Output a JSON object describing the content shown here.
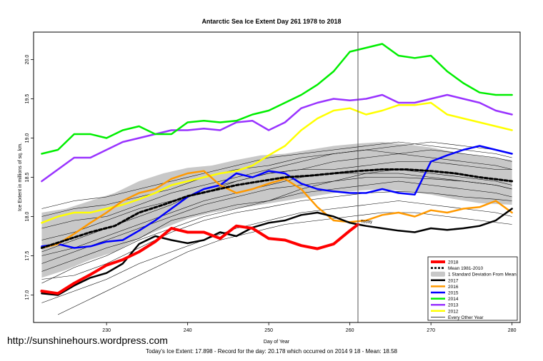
{
  "chart_data": {
    "type": "line",
    "title": "Antarctic Sea Ice Extent Day 261 1978 to 2018",
    "xlabel": "Day of Year",
    "ylabel": "Ice Extent in millions of sq. km.",
    "xlim": [
      221,
      281
    ],
    "ylim": [
      16.65,
      20.35
    ],
    "x_ticks": [
      230,
      240,
      250,
      260,
      270,
      280
    ],
    "y_ticks": [
      17.0,
      17.5,
      18.0,
      18.5,
      19.0,
      19.5,
      20.0
    ],
    "marker_day": 261,
    "marker_label": "Today",
    "legend_position": "bottom-right",
    "band": {
      "name": "1 Standard Deviation From Mean",
      "x": [
        222,
        225,
        228,
        231,
        234,
        237,
        240,
        243,
        246,
        249,
        252,
        255,
        258,
        261,
        264,
        267,
        270,
        273,
        276,
        280
      ],
      "upper": [
        18.05,
        18.1,
        18.2,
        18.3,
        18.45,
        18.55,
        18.62,
        18.65,
        18.72,
        18.78,
        18.8,
        18.85,
        18.9,
        18.93,
        18.95,
        18.92,
        18.88,
        18.82,
        18.77,
        18.72
      ],
      "lower": [
        17.22,
        17.32,
        17.45,
        17.55,
        17.72,
        17.85,
        17.97,
        18.05,
        18.1,
        18.15,
        18.2,
        18.25,
        18.3,
        18.33,
        18.35,
        18.32,
        18.28,
        18.22,
        18.17,
        18.15
      ]
    },
    "series": [
      {
        "name": "2018",
        "color": "#ff0000",
        "width": 4,
        "x": [
          222,
          224,
          226,
          228,
          230,
          232,
          234,
          236,
          238,
          240,
          242,
          244,
          246,
          248,
          250,
          252,
          254,
          256,
          258,
          260,
          261
        ],
        "values": [
          17.05,
          17.02,
          17.15,
          17.26,
          17.38,
          17.45,
          17.55,
          17.68,
          17.85,
          17.8,
          17.8,
          17.72,
          17.88,
          17.85,
          17.72,
          17.7,
          17.63,
          17.59,
          17.65,
          17.82,
          17.898
        ]
      },
      {
        "name": "Mean 1981-2010",
        "color": "#000000",
        "width": 3,
        "dash": "4,3",
        "x": [
          222,
          225,
          228,
          231,
          234,
          237,
          240,
          243,
          246,
          249,
          252,
          255,
          258,
          261,
          264,
          267,
          270,
          273,
          276,
          280
        ],
        "values": [
          17.6,
          17.7,
          17.8,
          17.88,
          18.05,
          18.15,
          18.26,
          18.33,
          18.4,
          18.45,
          18.5,
          18.52,
          18.55,
          18.58,
          18.6,
          18.6,
          18.58,
          18.55,
          18.5,
          18.45
        ]
      },
      {
        "name": "2017",
        "color": "#000000",
        "width": 2.5,
        "x": [
          222,
          224,
          226,
          228,
          230,
          232,
          234,
          236,
          238,
          240,
          242,
          244,
          246,
          248,
          250,
          252,
          254,
          256,
          258,
          260,
          262,
          264,
          266,
          268,
          270,
          272,
          274,
          276,
          278,
          280
        ],
        "values": [
          17.02,
          17.0,
          17.12,
          17.22,
          17.28,
          17.4,
          17.65,
          17.75,
          17.7,
          17.66,
          17.7,
          17.8,
          17.75,
          17.86,
          17.92,
          17.95,
          18.02,
          18.05,
          18.0,
          17.92,
          17.88,
          17.85,
          17.82,
          17.8,
          17.85,
          17.83,
          17.85,
          17.88,
          17.95,
          18.1
        ]
      },
      {
        "name": "2016",
        "color": "#ff9900",
        "width": 2.5,
        "x": [
          222,
          224,
          226,
          228,
          230,
          232,
          234,
          236,
          238,
          240,
          242,
          244,
          246,
          248,
          250,
          252,
          254,
          256,
          258,
          260,
          262,
          264,
          266,
          268,
          270,
          272,
          274,
          276,
          278,
          280
        ],
        "values": [
          17.6,
          17.65,
          17.78,
          17.92,
          18.05,
          18.2,
          18.3,
          18.35,
          18.48,
          18.55,
          18.58,
          18.4,
          18.3,
          18.35,
          18.42,
          18.48,
          18.35,
          18.12,
          17.95,
          17.93,
          17.95,
          18.02,
          18.05,
          18.0,
          18.08,
          18.05,
          18.1,
          18.12,
          18.2,
          18.05
        ]
      },
      {
        "name": "2015",
        "color": "#0000ff",
        "width": 2.5,
        "x": [
          222,
          224,
          226,
          228,
          230,
          232,
          234,
          236,
          238,
          240,
          242,
          244,
          246,
          248,
          250,
          252,
          254,
          256,
          258,
          260,
          262,
          264,
          266,
          268,
          270,
          272,
          274,
          276,
          278,
          280
        ],
        "values": [
          17.62,
          17.65,
          17.6,
          17.62,
          17.68,
          17.7,
          17.82,
          17.95,
          18.1,
          18.25,
          18.35,
          18.4,
          18.55,
          18.5,
          18.58,
          18.55,
          18.42,
          18.35,
          18.32,
          18.3,
          18.3,
          18.35,
          18.3,
          18.28,
          18.7,
          18.78,
          18.85,
          18.9,
          18.85,
          18.8
        ]
      },
      {
        "name": "2014",
        "color": "#00ee00",
        "width": 2.5,
        "x": [
          222,
          224,
          226,
          228,
          230,
          232,
          234,
          236,
          238,
          240,
          242,
          244,
          246,
          248,
          250,
          252,
          254,
          256,
          258,
          260,
          262,
          264,
          266,
          268,
          270,
          272,
          274,
          276,
          278,
          280
        ],
        "values": [
          18.8,
          18.85,
          19.05,
          19.05,
          19.0,
          19.1,
          19.15,
          19.05,
          19.05,
          19.2,
          19.22,
          19.2,
          19.22,
          19.3,
          19.35,
          19.45,
          19.55,
          19.68,
          19.85,
          20.1,
          20.15,
          20.2,
          20.05,
          20.02,
          20.05,
          19.85,
          19.7,
          19.58,
          19.55,
          19.55
        ]
      },
      {
        "name": "2013",
        "color": "#9933ff",
        "width": 2.5,
        "x": [
          222,
          224,
          226,
          228,
          230,
          232,
          234,
          236,
          238,
          240,
          242,
          244,
          246,
          248,
          250,
          252,
          254,
          256,
          258,
          260,
          262,
          264,
          266,
          268,
          270,
          272,
          274,
          276,
          278,
          280
        ],
        "values": [
          18.45,
          18.6,
          18.75,
          18.75,
          18.85,
          18.95,
          19.0,
          19.05,
          19.1,
          19.1,
          19.12,
          19.1,
          19.2,
          19.22,
          19.1,
          19.2,
          19.38,
          19.45,
          19.5,
          19.48,
          19.5,
          19.55,
          19.45,
          19.45,
          19.5,
          19.55,
          19.5,
          19.45,
          19.35,
          19.3
        ]
      },
      {
        "name": "2012",
        "color": "#ffff00",
        "width": 2.5,
        "x": [
          222,
          224,
          226,
          228,
          230,
          232,
          234,
          236,
          238,
          240,
          242,
          244,
          246,
          248,
          250,
          252,
          254,
          256,
          258,
          260,
          262,
          264,
          266,
          268,
          270,
          272,
          274,
          276,
          278,
          280
        ],
        "values": [
          17.92,
          18.0,
          18.05,
          18.05,
          18.1,
          18.15,
          18.22,
          18.3,
          18.4,
          18.45,
          18.5,
          18.55,
          18.58,
          18.65,
          18.78,
          18.9,
          19.1,
          19.25,
          19.35,
          19.38,
          19.3,
          19.35,
          19.42,
          19.42,
          19.45,
          19.3,
          19.25,
          19.2,
          19.15,
          19.1
        ]
      }
    ],
    "other_label": "Every Other Year",
    "other_color": "#000000",
    "other_years": [
      {
        "x": [
          222,
          226,
          230,
          234,
          238,
          242,
          246,
          250,
          254,
          258,
          262,
          266,
          270,
          274,
          278,
          280
        ],
        "values": [
          17.3,
          17.45,
          17.6,
          17.72,
          17.95,
          18.05,
          18.15,
          18.2,
          18.35,
          18.45,
          18.5,
          18.5,
          18.48,
          18.45,
          18.4,
          18.35
        ]
      },
      {
        "x": [
          222,
          226,
          230,
          234,
          238,
          242,
          246,
          250,
          254,
          258,
          262,
          266,
          270,
          274,
          278,
          280
        ],
        "values": [
          17.55,
          17.7,
          17.85,
          18.0,
          18.15,
          18.35,
          18.45,
          18.55,
          18.6,
          18.7,
          18.75,
          18.8,
          18.75,
          18.7,
          18.65,
          18.6
        ]
      },
      {
        "x": [
          222,
          226,
          230,
          234,
          238,
          242,
          246,
          250,
          254,
          258,
          262,
          266,
          270,
          274,
          278,
          280
        ],
        "values": [
          17.2,
          17.25,
          17.4,
          17.6,
          17.8,
          17.95,
          18.05,
          18.12,
          18.2,
          18.25,
          18.3,
          18.32,
          18.3,
          18.25,
          18.22,
          18.2
        ]
      },
      {
        "x": [
          222,
          226,
          230,
          234,
          238,
          242,
          246,
          250,
          254,
          258,
          262,
          266,
          270,
          274,
          278,
          280
        ],
        "values": [
          18.1,
          18.2,
          18.25,
          18.35,
          18.45,
          18.55,
          18.65,
          18.75,
          18.8,
          18.85,
          18.9,
          18.95,
          18.9,
          18.85,
          18.8,
          18.75
        ]
      },
      {
        "x": [
          222,
          226,
          230,
          234,
          238,
          242,
          246,
          250,
          254,
          258,
          262,
          266,
          270,
          274,
          278,
          280
        ],
        "values": [
          16.9,
          17.05,
          17.2,
          17.4,
          17.55,
          17.7,
          17.85,
          17.95,
          18.05,
          18.1,
          18.15,
          18.2,
          18.15,
          18.1,
          18.05,
          18.0
        ]
      },
      {
        "x": [
          222,
          226,
          230,
          234,
          238,
          242,
          246,
          250,
          254,
          258,
          262,
          266,
          270,
          274,
          278,
          280
        ],
        "values": [
          17.85,
          17.95,
          18.0,
          18.15,
          18.3,
          18.4,
          18.5,
          18.6,
          18.7,
          18.8,
          18.85,
          18.9,
          18.95,
          18.9,
          18.85,
          18.8
        ]
      },
      {
        "x": [
          222,
          226,
          230,
          234,
          238,
          242,
          246,
          250,
          254,
          258,
          262,
          266,
          270,
          274,
          278,
          280
        ],
        "values": [
          17.4,
          17.55,
          17.7,
          17.85,
          18.0,
          18.15,
          18.25,
          18.35,
          18.4,
          18.45,
          18.55,
          18.6,
          18.55,
          18.5,
          18.45,
          18.4
        ]
      },
      {
        "x": [
          224,
          228,
          232,
          236,
          240,
          244,
          248,
          252,
          256,
          260,
          264,
          268,
          272,
          276,
          280
        ],
        "values": [
          16.75,
          16.95,
          17.15,
          17.35,
          17.55,
          17.7,
          17.8,
          17.9,
          17.95,
          18.0,
          18.05,
          18.05,
          18.0,
          17.95,
          17.9
        ]
      },
      {
        "x": [
          222,
          226,
          230,
          234,
          238,
          242,
          246,
          250,
          254,
          258,
          262,
          266,
          270,
          274,
          278,
          280
        ],
        "values": [
          17.7,
          17.8,
          17.95,
          18.1,
          18.2,
          18.3,
          18.45,
          18.55,
          18.6,
          18.6,
          18.65,
          18.7,
          18.7,
          18.65,
          18.6,
          18.6
        ]
      },
      {
        "x": [
          222,
          226,
          230,
          234,
          238,
          242,
          246,
          250,
          254,
          258,
          262,
          266,
          270,
          274,
          278,
          280
        ],
        "values": [
          18.0,
          18.1,
          18.15,
          18.25,
          18.35,
          18.5,
          18.6,
          18.65,
          18.75,
          18.8,
          18.85,
          18.8,
          18.85,
          18.8,
          18.75,
          18.7
        ]
      },
      {
        "x": [
          222,
          226,
          230,
          234,
          238,
          242,
          246,
          250,
          254,
          258,
          262,
          266,
          270,
          274,
          278,
          280
        ],
        "values": [
          17.5,
          17.6,
          17.75,
          17.9,
          18.05,
          18.2,
          18.3,
          18.4,
          18.5,
          18.55,
          18.55,
          18.55,
          18.5,
          18.45,
          18.4,
          18.35
        ]
      },
      {
        "x": [
          222,
          226,
          230,
          234,
          238,
          242,
          246,
          250,
          254,
          258,
          262,
          266,
          270,
          274,
          278,
          280
        ],
        "values": [
          17.15,
          17.35,
          17.5,
          17.7,
          17.85,
          18.0,
          18.1,
          18.2,
          18.3,
          18.35,
          18.4,
          18.45,
          18.4,
          18.35,
          18.3,
          18.25
        ]
      }
    ],
    "footer": "Today's Ice Extent: 17.898  - Record for the day: 20.178 which occurred on 2014 9 18  - Mean: 18.58"
  },
  "watermark": "http://sunshinehours.wordpress.com"
}
